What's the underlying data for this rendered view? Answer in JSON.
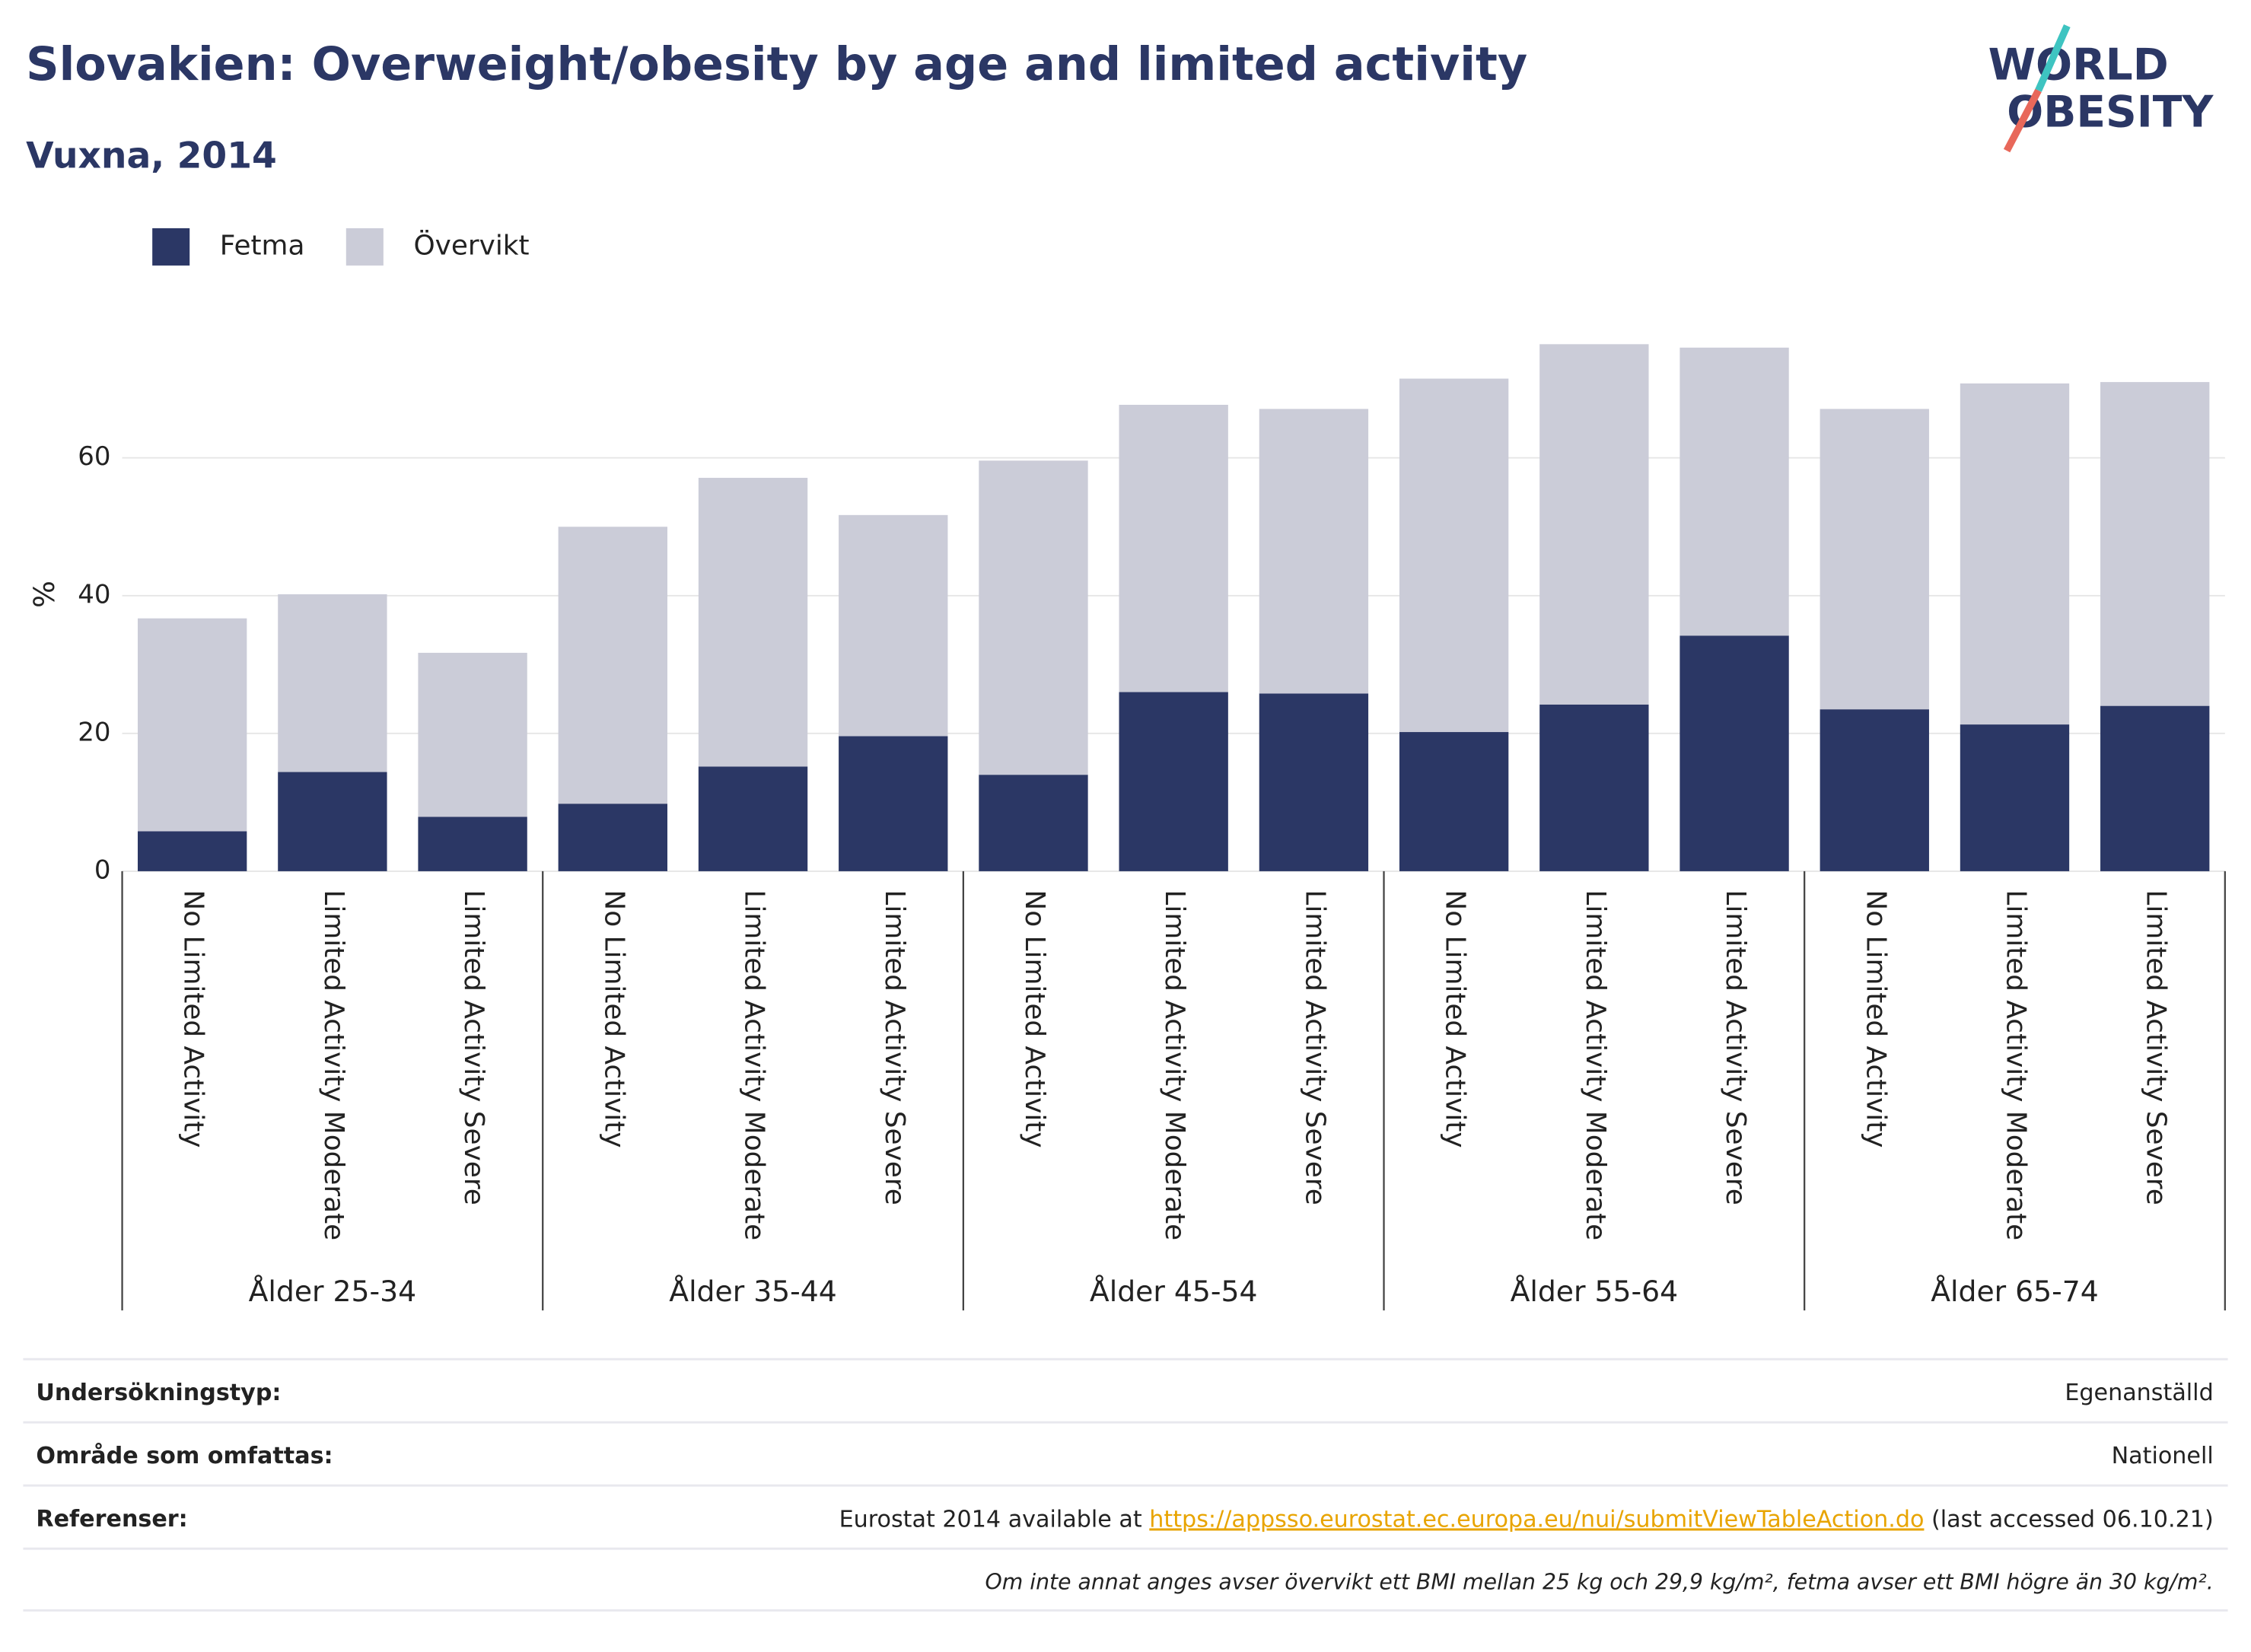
{
  "chart_data": {
    "type": "stacked_bar",
    "title": "Slovakien: Overweight/obesity by age and limited activity",
    "subtitle": "Vuxna, 2014",
    "ylabel": "%",
    "categories": [
      "No Limited Activity",
      "Limited Activity Moderate",
      "Limited Activity Severe",
      "No Limited Activity",
      "Limited Activity Moderate",
      "Limited Activity Severe",
      "No Limited Activity",
      "Limited Activity Moderate",
      "Limited Activity Severe",
      "No Limited Activity",
      "Limited Activity Moderate",
      "Limited Activity Severe",
      "No Limited Activity",
      "Limited Activity Moderate",
      "Limited Activity Severe"
    ],
    "groups": [
      "Ålder 25-34",
      "Ålder 35-44",
      "Ålder 45-54",
      "Ålder 55-64",
      "Ålder 65-74"
    ],
    "series": [
      {
        "name": "Fetma",
        "color": "#2b3765",
        "values": [
          5.8,
          14.4,
          7.9,
          9.8,
          15.2,
          19.6,
          14.0,
          26.0,
          25.8,
          20.2,
          24.2,
          34.2,
          23.5,
          21.3,
          24.0
        ]
      },
      {
        "name": "Övervikt",
        "color": "#cbccd8",
        "values": [
          30.9,
          25.8,
          23.8,
          40.2,
          41.9,
          32.1,
          45.6,
          41.7,
          41.3,
          51.3,
          52.3,
          41.8,
          43.6,
          49.5,
          47.0
        ]
      }
    ],
    "ylim": [
      0,
      80
    ],
    "yticks": [
      0,
      20,
      40,
      60
    ],
    "grid": true
  },
  "logo": {
    "line1": "WORLD",
    "line2": "OBESITY"
  },
  "footer": {
    "rows": [
      {
        "label": "Undersökningstyp:",
        "value": "Egenanställd"
      },
      {
        "label": "Område som omfattas:",
        "value": "Nationell"
      }
    ],
    "reference": {
      "label": "Referenser:",
      "prefix": "Eurostat 2014 available at ",
      "link": "https://appsso.eurostat.ec.europa.eu/nui/submitViewTableAction.do",
      "suffix": " (last accessed 06.10.21)"
    },
    "note": "Om inte annat anges avser övervikt ett BMI mellan 25 kg och 29,9 kg/m², fetma avser ett BMI högre än 30 kg/m²."
  }
}
